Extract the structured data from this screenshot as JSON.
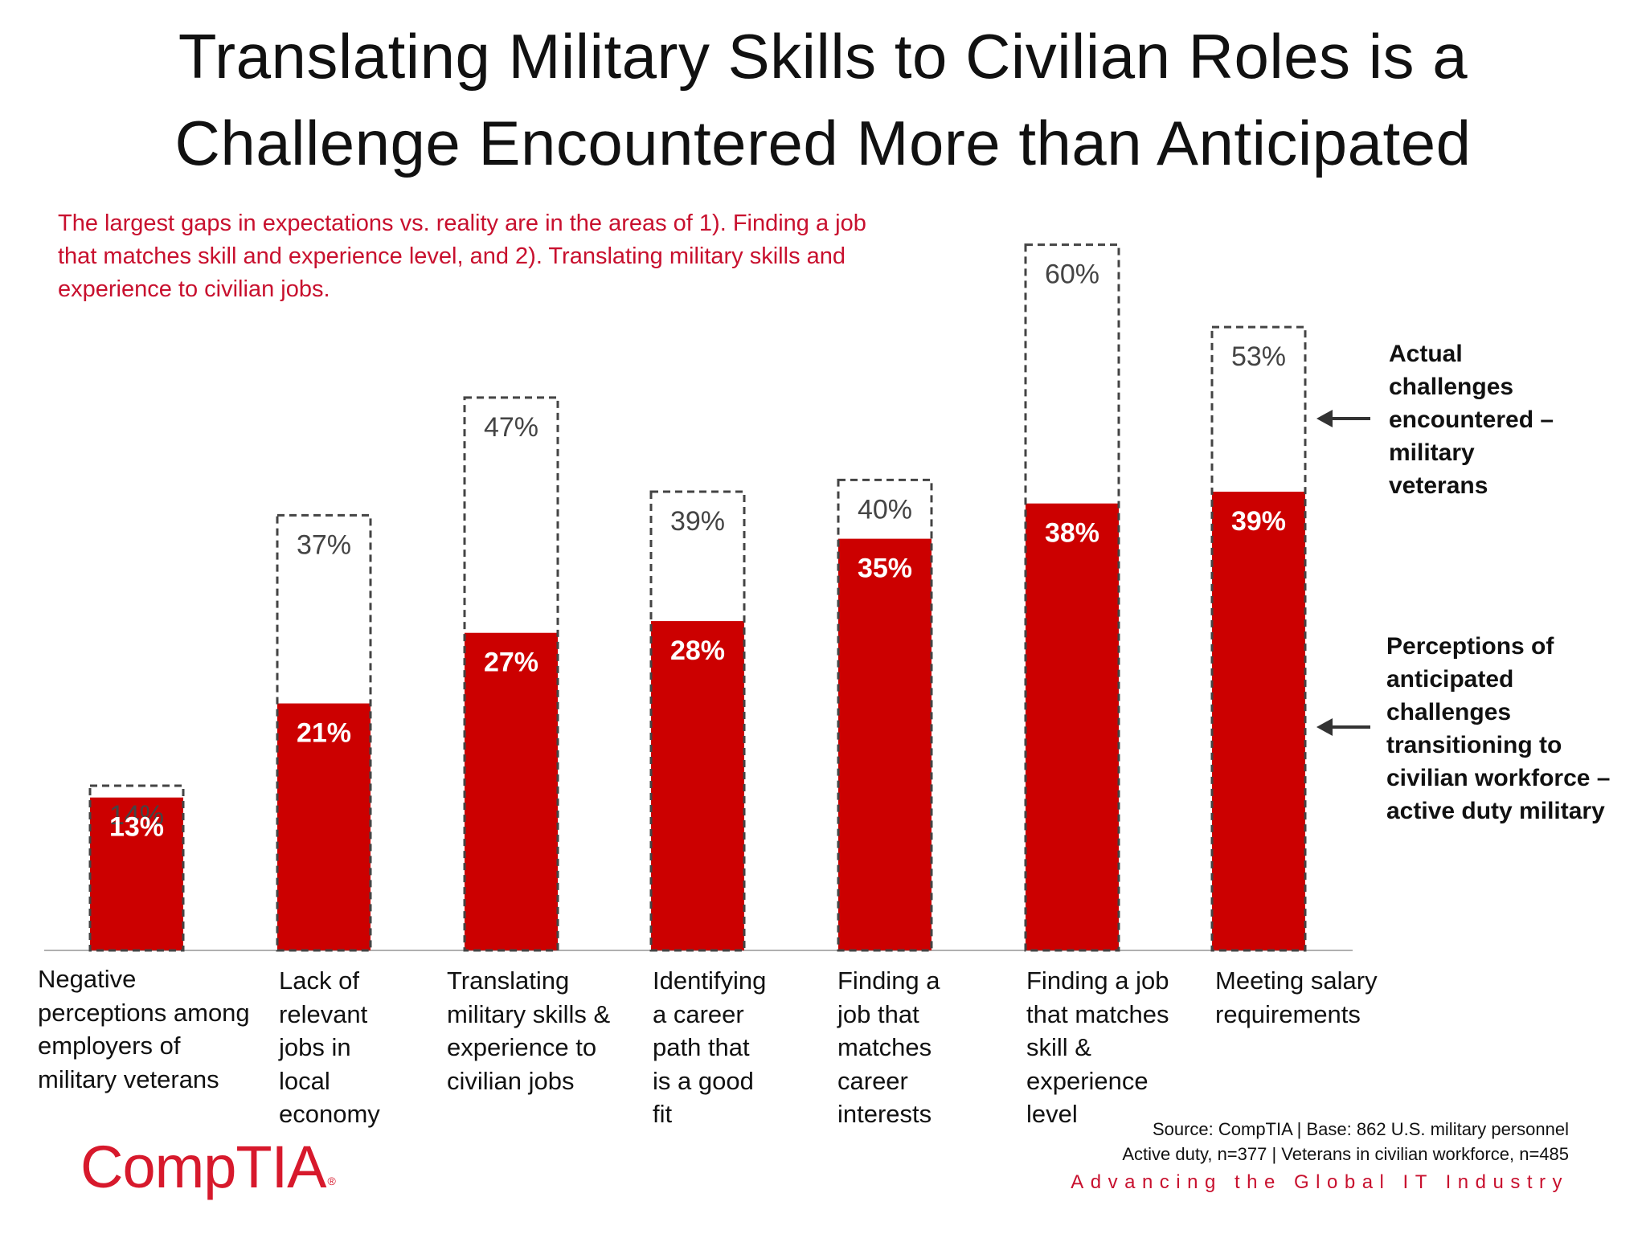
{
  "title_lines": [
    "Translating Military Skills to Civilian Roles is a",
    "Challenge Encountered More than Anticipated"
  ],
  "subtitle_lines": [
    "The largest gaps in expectations vs. reality are in the areas of 1). Finding a job",
    "that matches skill and experience level, and 2). Translating military skills and",
    "experience to civilian jobs."
  ],
  "legend": {
    "actual": {
      "lines": [
        "Actual",
        "challenges",
        "encountered –",
        "military",
        "veterans"
      ],
      "icon": "left-arrow-icon"
    },
    "perceived": {
      "lines": [
        "Perceptions of",
        "anticipated",
        "challenges",
        "transitioning to",
        "civilian workforce –",
        "active duty military"
      ],
      "icon": "left-arrow-icon"
    }
  },
  "source_lines": [
    "Source: CompTIA | Base: 862 U.S. military personnel",
    "Active duty, n=377 | Veterans in civilian workforce, n=485"
  ],
  "brand": {
    "logo_text": "CompTIA",
    "logo_mark": "®",
    "tagline": "Advancing the Global IT Industry"
  },
  "colors": {
    "accent_red": "#cc0000",
    "subtitle_red": "#c8102e",
    "dashed_outline": "#444444",
    "axis_line": "#b0b0b0",
    "outline_label": "#444444",
    "fill_label": "#ffffff"
  },
  "chart_data": {
    "type": "bar",
    "categories": [
      [
        "Negative",
        "perceptions among",
        "employers of",
        "military veterans"
      ],
      [
        "Lack of",
        "relevant",
        "jobs in",
        "local",
        "economy"
      ],
      [
        "Translating",
        "military skills &",
        "experience to",
        "civilian jobs"
      ],
      [
        "Identifying",
        "a career",
        "path that",
        "is a good",
        "fit"
      ],
      [
        "Finding a",
        "job that",
        "matches",
        "career",
        "interests"
      ],
      [
        "Finding a job",
        "that matches",
        "skill &",
        "experience",
        "level"
      ],
      [
        "Meeting salary",
        "requirements"
      ]
    ],
    "series": [
      {
        "name": "Actual challenges encountered – military veterans",
        "style": "dashed-outline",
        "values": [
          14,
          37,
          47,
          39,
          40,
          60,
          53
        ],
        "labels": [
          "14%",
          "37%",
          "47%",
          "39%",
          "40%",
          "60%",
          "53%"
        ]
      },
      {
        "name": "Perceptions of anticipated challenges transitioning to civilian workforce – active duty military",
        "style": "solid-fill",
        "values": [
          13,
          21,
          27,
          28,
          35,
          38,
          39
        ],
        "labels": [
          "13%",
          "21%",
          "27%",
          "28%",
          "35%",
          "38%",
          "39%"
        ]
      }
    ],
    "ylim": [
      0,
      60
    ],
    "grid": false,
    "legend_position": "right"
  }
}
